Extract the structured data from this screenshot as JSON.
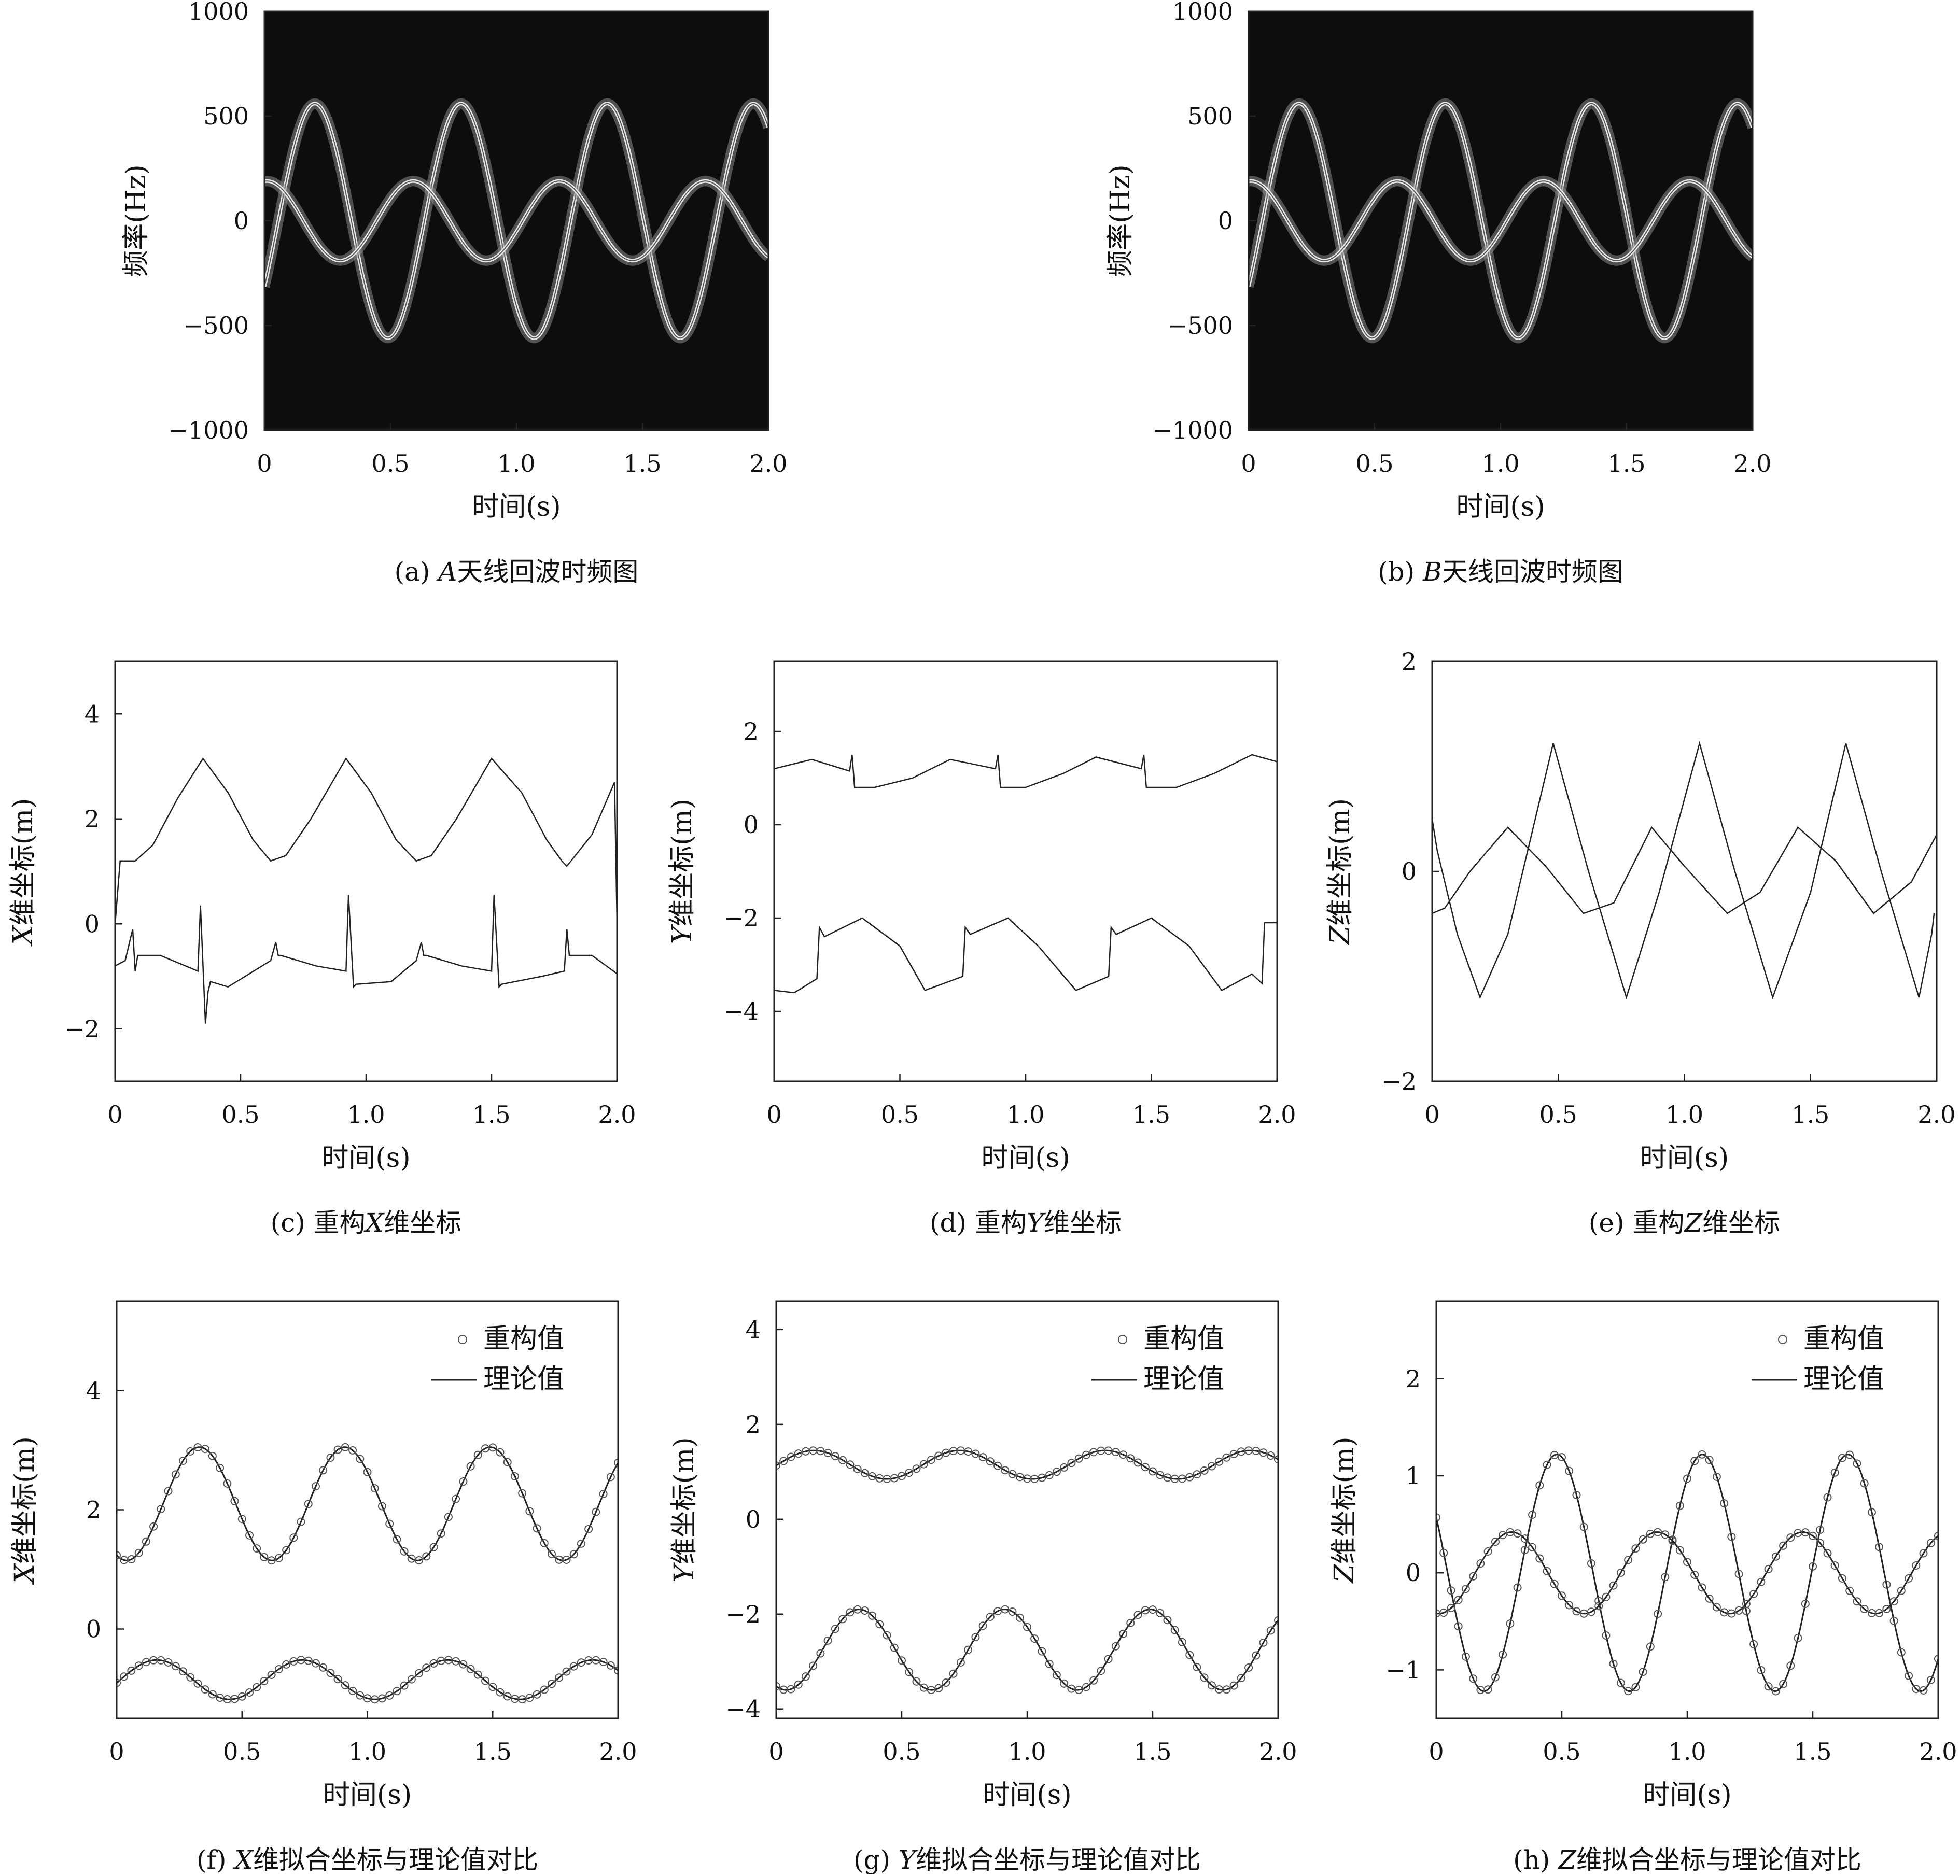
{
  "figure": {
    "axis_label_time": "时间(s)",
    "time_ticks": [
      "0",
      "0.5",
      "1.0",
      "1.5",
      "2.0"
    ]
  },
  "chart_data": [
    {
      "id": "a",
      "type": "heatmap",
      "caption_prefix": "(a) ",
      "caption_var": "A",
      "caption_rest": "天线回波时频图",
      "xlabel": "时间(s)",
      "ylabel": "频率(Hz)",
      "xlim": [
        0,
        2
      ],
      "ylim": [
        -1000,
        1000
      ],
      "yticks": [
        1000,
        500,
        0,
        -500,
        -1000
      ],
      "ytick_labels": [
        "1000",
        "500",
        "0",
        "−500",
        "−1000"
      ],
      "background": "#0d0d0d",
      "trace_color": "#e8e8e8",
      "series": [
        {
          "period": 0.58,
          "amplitude": 560,
          "phase_time": 0.2
        },
        {
          "period": 0.58,
          "amplitude": 190,
          "phase_time": 0.59
        }
      ]
    },
    {
      "id": "b",
      "type": "heatmap",
      "caption_prefix": "(b) ",
      "caption_var": "B",
      "caption_rest": "天线回波时频图",
      "xlabel": "时间(s)",
      "ylabel": "频率(Hz)",
      "xlim": [
        0,
        2
      ],
      "ylim": [
        -1000,
        1000
      ],
      "yticks": [
        1000,
        500,
        0,
        -500,
        -1000
      ],
      "ytick_labels": [
        "1000",
        "500",
        "0",
        "−500",
        "−1000"
      ],
      "background": "#0d0d0d",
      "trace_color": "#e8e8e8",
      "series": [
        {
          "period": 0.58,
          "amplitude": 560,
          "phase_time": 0.2
        },
        {
          "period": 0.58,
          "amplitude": 190,
          "phase_time": 0.59
        }
      ]
    },
    {
      "id": "c",
      "type": "line",
      "caption_prefix": "(c) 重构",
      "caption_var": "X",
      "caption_rest": "维坐标",
      "xlabel": "时间(s)",
      "ylabel_var": "X",
      "ylabel_rest": "维坐标(m)",
      "xlim": [
        0,
        2
      ],
      "ylim": [
        -3,
        5
      ],
      "yticks": [
        4,
        2,
        0,
        -2
      ],
      "ytick_labels": [
        "4",
        "2",
        "0",
        "−2"
      ],
      "series": [
        {
          "x": [
            0,
            0.02,
            0.08,
            0.15,
            0.25,
            0.35,
            0.45,
            0.55,
            0.62,
            0.68,
            0.78,
            0.92,
            1.02,
            1.12,
            1.2,
            1.26,
            1.36,
            1.5,
            1.62,
            1.72,
            1.78,
            1.8,
            1.9,
            1.99,
            2.0
          ],
          "y": [
            0,
            1.2,
            1.2,
            1.5,
            2.4,
            3.15,
            2.5,
            1.6,
            1.2,
            1.3,
            2.0,
            3.15,
            2.5,
            1.6,
            1.2,
            1.3,
            2.0,
            3.15,
            2.5,
            1.6,
            1.2,
            1.1,
            1.7,
            2.7,
            0
          ]
        },
        {
          "x": [
            0,
            0.04,
            0.07,
            0.08,
            0.09,
            0.18,
            0.33,
            0.34,
            0.36,
            0.37,
            0.38,
            0.45,
            0.62,
            0.64,
            0.65,
            0.66,
            0.8,
            0.92,
            0.93,
            0.95,
            0.96,
            1.1,
            1.2,
            1.22,
            1.23,
            1.24,
            1.38,
            1.5,
            1.51,
            1.53,
            1.54,
            1.7,
            1.79,
            1.8,
            1.81,
            1.82,
            1.9,
            2.0
          ],
          "y": [
            -0.8,
            -0.7,
            -0.1,
            -0.9,
            -0.6,
            -0.6,
            -0.9,
            0.35,
            -1.9,
            -1.3,
            -1.1,
            -1.2,
            -0.7,
            -0.35,
            -0.6,
            -0.6,
            -0.8,
            -0.9,
            0.55,
            -1.2,
            -1.15,
            -1.1,
            -0.7,
            -0.35,
            -0.6,
            -0.6,
            -0.8,
            -0.9,
            0.55,
            -1.2,
            -1.15,
            -1.0,
            -0.9,
            -0.1,
            -0.6,
            -0.6,
            -0.6,
            -0.95
          ]
        }
      ]
    },
    {
      "id": "d",
      "type": "line",
      "caption_prefix": "(d) 重构",
      "caption_var": "Y",
      "caption_rest": "维坐标",
      "xlabel": "时间(s)",
      "ylabel_var": "Y",
      "ylabel_rest": "维坐标(m)",
      "xlim": [
        0,
        2
      ],
      "ylim": [
        -5.5,
        3.5
      ],
      "yticks": [
        2,
        0,
        -2,
        -4
      ],
      "ytick_labels": [
        "2",
        "0",
        "−2",
        "−4"
      ],
      "series": [
        {
          "x": [
            0,
            0.15,
            0.3,
            0.31,
            0.32,
            0.4,
            0.55,
            0.7,
            0.88,
            0.89,
            0.9,
            1.0,
            1.15,
            1.28,
            1.46,
            1.47,
            1.48,
            1.6,
            1.75,
            1.9,
            2.0
          ],
          "y": [
            1.2,
            1.4,
            1.15,
            1.5,
            0.8,
            0.8,
            1.0,
            1.4,
            1.2,
            1.5,
            0.8,
            0.8,
            1.1,
            1.45,
            1.2,
            1.5,
            0.8,
            0.8,
            1.1,
            1.5,
            1.35
          ]
        },
        {
          "x": [
            0,
            0.08,
            0.17,
            0.18,
            0.2,
            0.35,
            0.5,
            0.6,
            0.75,
            0.76,
            0.78,
            0.93,
            1.05,
            1.2,
            1.33,
            1.34,
            1.36,
            1.5,
            1.65,
            1.78,
            1.9,
            1.94,
            1.95,
            2.0
          ],
          "y": [
            -3.55,
            -3.6,
            -3.3,
            -2.2,
            -2.4,
            -2.0,
            -2.6,
            -3.55,
            -3.25,
            -2.2,
            -2.35,
            -2.0,
            -2.6,
            -3.55,
            -3.25,
            -2.2,
            -2.35,
            -2.0,
            -2.6,
            -3.55,
            -3.2,
            -3.4,
            -2.1,
            -2.1
          ]
        }
      ]
    },
    {
      "id": "e",
      "type": "line",
      "caption_prefix": "(e) 重构",
      "caption_var": "Z",
      "caption_rest": "维坐标",
      "xlabel": "时间(s)",
      "ylabel_var": "Z",
      "ylabel_rest": "维坐标(m)",
      "xlim": [
        0,
        2
      ],
      "ylim": [
        -2,
        2
      ],
      "yticks": [
        2,
        0,
        -2
      ],
      "ytick_labels": [
        "2",
        "0",
        "−2"
      ],
      "series": [
        {
          "x": [
            0,
            0.02,
            0.1,
            0.19,
            0.3,
            0.48,
            0.62,
            0.77,
            0.9,
            1.06,
            1.2,
            1.35,
            1.5,
            1.64,
            1.78,
            1.93,
            1.98,
            1.99
          ],
          "y": [
            0.5,
            0.2,
            -0.6,
            -1.2,
            -0.6,
            1.22,
            0.0,
            -1.2,
            -0.2,
            1.22,
            0.0,
            -1.2,
            -0.2,
            1.22,
            0.0,
            -1.2,
            -0.6,
            -0.4
          ]
        },
        {
          "x": [
            0,
            0.05,
            0.15,
            0.3,
            0.45,
            0.6,
            0.72,
            0.87,
            1.0,
            1.17,
            1.3,
            1.45,
            1.6,
            1.75,
            1.9,
            2.0
          ],
          "y": [
            -0.4,
            -0.35,
            0.0,
            0.42,
            0.05,
            -0.4,
            -0.3,
            0.42,
            0.05,
            -0.4,
            -0.2,
            0.42,
            0.1,
            -0.4,
            -0.1,
            0.35
          ]
        }
      ]
    },
    {
      "id": "f",
      "type": "scatter",
      "caption_prefix": "(f) ",
      "caption_var": "X",
      "caption_rest": "维拟合坐标与理论值对比",
      "xlabel": "时间(s)",
      "ylabel_var": "X",
      "ylabel_rest": "维坐标(m)",
      "xlim": [
        0,
        2
      ],
      "ylim": [
        -1.5,
        5.5
      ],
      "yticks": [
        4,
        2,
        0
      ],
      "ytick_labels": [
        "4",
        "2",
        "0"
      ],
      "legend": {
        "scatter_label": "重构值",
        "line_label": "理论值",
        "position": "top-right"
      },
      "series": [
        {
          "period": 0.58,
          "mean": 2.1,
          "amplitude": 0.95,
          "phase_time": 0.33
        },
        {
          "period": 0.58,
          "mean": -0.85,
          "amplitude": 0.33,
          "phase_time": 0.74
        }
      ]
    },
    {
      "id": "g",
      "type": "scatter",
      "caption_prefix": "(g) ",
      "caption_var": "Y",
      "caption_rest": "维拟合坐标与理论值对比",
      "xlabel": "时间(s)",
      "ylabel_var": "Y",
      "ylabel_rest": "维坐标(m)",
      "xlim": [
        0,
        2
      ],
      "ylim": [
        -4.2,
        4.6
      ],
      "yticks": [
        4,
        2,
        0,
        -2,
        -4
      ],
      "ytick_labels": [
        "4",
        "2",
        "0",
        "−2",
        "−4"
      ],
      "legend": {
        "scatter_label": "重构值",
        "line_label": "理论值",
        "position": "top-right"
      },
      "series": [
        {
          "period": 0.58,
          "mean": 1.15,
          "amplitude": 0.3,
          "phase_time": 0.15
        },
        {
          "period": 0.58,
          "mean": -2.75,
          "amplitude": 0.85,
          "phase_time": 0.33
        }
      ]
    },
    {
      "id": "h",
      "type": "scatter",
      "caption_prefix": "(h) ",
      "caption_var": "Z",
      "caption_rest": "维拟合坐标与理论值对比",
      "xlabel": "时间(s)",
      "ylabel_var": "Z",
      "ylabel_rest": "维坐标(m)",
      "xlim": [
        0,
        2
      ],
      "ylim": [
        -1.5,
        2.8
      ],
      "yticks": [
        2,
        1,
        0,
        -1
      ],
      "ytick_labels": [
        "2",
        "1",
        "0",
        "−1"
      ],
      "legend": {
        "scatter_label": "重构值",
        "line_label": "理论值",
        "position": "top-right"
      },
      "series": [
        {
          "period": 0.58,
          "mean": 0.0,
          "amplitude": 1.22,
          "phase_time": 0.48
        },
        {
          "period": 0.58,
          "mean": 0.0,
          "amplitude": 0.42,
          "phase_time": 0.3
        }
      ]
    }
  ]
}
